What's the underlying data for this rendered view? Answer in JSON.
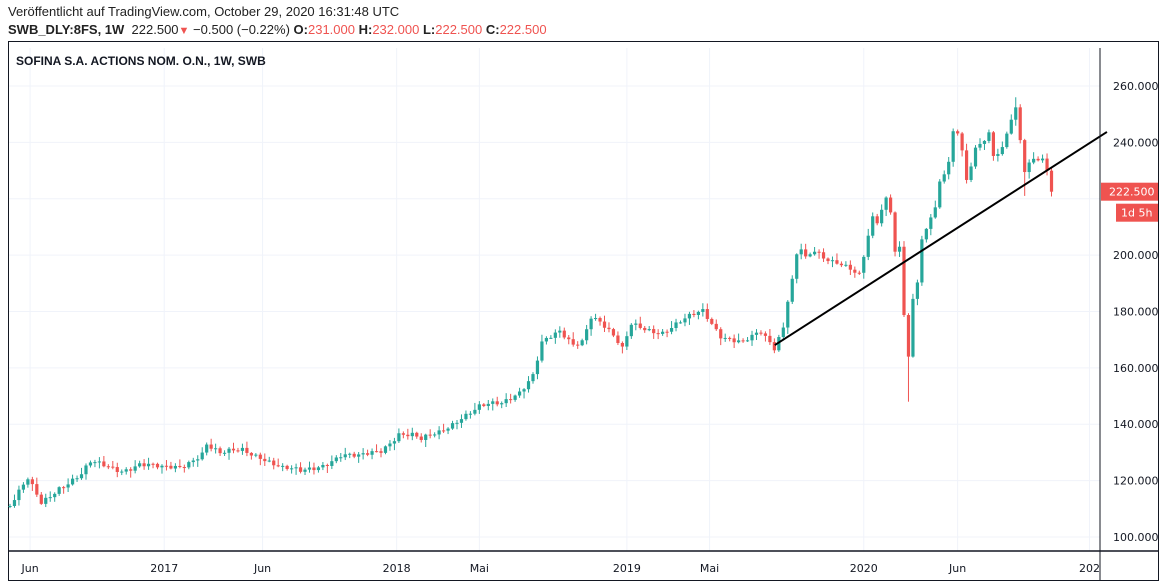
{
  "header": {
    "published": "Veröffentlicht auf TradingView.com, October 29, 2020 16:31:48 UTC",
    "symbol": "SWB_DLY:8FS, 1W",
    "last": "222.500",
    "change": "−0.500 (−0.22%)",
    "o_label": "O:",
    "o": "231.000",
    "h_label": "H:",
    "h": "232.000",
    "l_label": "L:",
    "l": "222.500",
    "c_label": "C:",
    "c": "222.500"
  },
  "colors": {
    "up": "#26a69a",
    "down": "#ef5350",
    "grid": "#f0f3fa",
    "trendline": "#000000"
  },
  "chart_data": {
    "type": "candlestick",
    "title": "SOFINA S.A. ACTIONS NOM. O.N., 1W, SWB",
    "interval": "1W",
    "ylim": [
      93,
      268
    ],
    "y_ticks": [
      "100.000",
      "120.000",
      "140.000",
      "160.000",
      "180.000",
      "200.000",
      "240.000",
      "260.000"
    ],
    "y_tick_values": [
      100,
      120,
      140,
      160,
      180,
      200,
      240,
      260
    ],
    "x_ticks": [
      {
        "label": "Jun",
        "week": 4.5
      },
      {
        "label": "2017",
        "week": 34.5
      },
      {
        "label": "Jun",
        "week": 56.5
      },
      {
        "label": "2018",
        "week": 86.5
      },
      {
        "label": "Mai",
        "week": 105
      },
      {
        "label": "2019",
        "week": 138
      },
      {
        "label": "Mai",
        "week": 156.5
      },
      {
        "label": "2020",
        "week": 191
      },
      {
        "label": "Jun",
        "week": 212
      },
      {
        "label": "202",
        "week": 241.5
      }
    ],
    "weeks_total": 233,
    "close_keypoints": [
      [
        0,
        111
      ],
      [
        4,
        120
      ],
      [
        7,
        112
      ],
      [
        11,
        118
      ],
      [
        16,
        122
      ],
      [
        18,
        126
      ],
      [
        25,
        124
      ],
      [
        29,
        126
      ],
      [
        34,
        124
      ],
      [
        38,
        125
      ],
      [
        43,
        130
      ],
      [
        44,
        133
      ],
      [
        47,
        129
      ],
      [
        52,
        131
      ],
      [
        56,
        129
      ],
      [
        61,
        124
      ],
      [
        65,
        123
      ],
      [
        70,
        126
      ],
      [
        74,
        129
      ],
      [
        78,
        128
      ],
      [
        83,
        131
      ],
      [
        87,
        137
      ],
      [
        90,
        136
      ],
      [
        92,
        134
      ],
      [
        96,
        137
      ],
      [
        101,
        143
      ],
      [
        105,
        146
      ],
      [
        110,
        147
      ],
      [
        114,
        152
      ],
      [
        117,
        158
      ],
      [
        119,
        169
      ],
      [
        123,
        172
      ],
      [
        126,
        168
      ],
      [
        128,
        170
      ],
      [
        130,
        179
      ],
      [
        132,
        177
      ],
      [
        135,
        171
      ],
      [
        137,
        166
      ],
      [
        139,
        175
      ],
      [
        146,
        173
      ],
      [
        150,
        176
      ],
      [
        155,
        180
      ],
      [
        157,
        176
      ],
      [
        159,
        172
      ],
      [
        164,
        169
      ],
      [
        168,
        172
      ],
      [
        171,
        167
      ],
      [
        173,
        175
      ],
      [
        174,
        185
      ],
      [
        175,
        192
      ],
      [
        176,
        201
      ],
      [
        177,
        203
      ],
      [
        178,
        199
      ],
      [
        180,
        201
      ],
      [
        182,
        198
      ],
      [
        184,
        197
      ],
      [
        186,
        197
      ],
      [
        188,
        196
      ],
      [
        190,
        194
      ],
      [
        191.7,
        205
      ],
      [
        192.8,
        214
      ],
      [
        193.7,
        210
      ],
      [
        194.6,
        214
      ],
      [
        195.7,
        218
      ],
      [
        196.7,
        221
      ],
      [
        197.8,
        198
      ],
      [
        198.7,
        209
      ],
      [
        199.8,
        183
      ],
      [
        200.9,
        162
      ],
      [
        201.9,
        184
      ],
      [
        202.9,
        190
      ],
      [
        203.8,
        206
      ],
      [
        204.8,
        208
      ],
      [
        205.6,
        215
      ],
      [
        206.7,
        214
      ],
      [
        207.8,
        225
      ],
      [
        210,
        232
      ],
      [
        211.4,
        247
      ],
      [
        213,
        236
      ],
      [
        214,
        226
      ],
      [
        216,
        238
      ],
      [
        219,
        244
      ],
      [
        220,
        236
      ],
      [
        222,
        238
      ],
      [
        224,
        248
      ],
      [
        225,
        251
      ],
      [
        227,
        229
      ],
      [
        229,
        234
      ],
      [
        231,
        234
      ],
      [
        232,
        231
      ],
      [
        233,
        222.5
      ]
    ],
    "wick_overrides": [
      {
        "week": 201,
        "low": 148
      },
      {
        "week": 225,
        "high": 256
      },
      {
        "week": 227,
        "low": 221
      }
    ],
    "trendline": {
      "start": {
        "week": 171.1,
        "price": 168.1
      },
      "end": {
        "week": 245.4,
        "price": 243.7
      }
    },
    "last_price_label": "222.500",
    "countdown_label": "1d 5h"
  }
}
